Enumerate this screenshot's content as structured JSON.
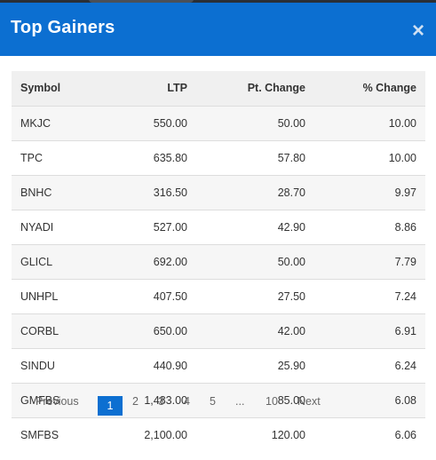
{
  "modal": {
    "title": "Top Gainers",
    "close_glyph": "×"
  },
  "table": {
    "columns": [
      "Symbol",
      "LTP",
      "Pt. Change",
      "% Change"
    ],
    "rows": [
      [
        "MKJC",
        "550.00",
        "50.00",
        "10.00"
      ],
      [
        "TPC",
        "635.80",
        "57.80",
        "10.00"
      ],
      [
        "BNHC",
        "316.50",
        "28.70",
        "9.97"
      ],
      [
        "NYADI",
        "527.00",
        "42.90",
        "8.86"
      ],
      [
        "GLICL",
        "692.00",
        "50.00",
        "7.79"
      ],
      [
        "UNHPL",
        "407.50",
        "27.50",
        "7.24"
      ],
      [
        "CORBL",
        "650.00",
        "42.00",
        "6.91"
      ],
      [
        "SINDU",
        "440.90",
        "25.90",
        "6.24"
      ],
      [
        "GMFBS",
        "1,483.00",
        "85.00",
        "6.08"
      ],
      [
        "SMFBS",
        "2,100.00",
        "120.00",
        "6.06"
      ]
    ]
  },
  "pagination": {
    "previous": "Previous",
    "pages": [
      "1",
      "2",
      "3",
      "4",
      "5",
      "...",
      "10"
    ],
    "next": "Next",
    "active_page": "1"
  },
  "colors": {
    "header_bg": "#0c6fd1",
    "gain_text": "#2e8b3a"
  }
}
